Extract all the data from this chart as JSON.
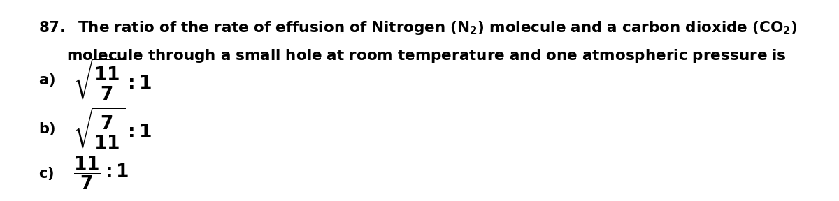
{
  "title_line1": "87.  The ratio of the rate of effusion of Nitrogen (N$_2$) molecule and a carbon dioxide (CO$_2$)",
  "title_line2": "molecule through a small hole at room temperature and one atmospheric pressure is",
  "option_a_label": "a)",
  "option_a_expr": "$\\sqrt{\\dfrac{11}{7}} : 1$",
  "option_b_label": "b)",
  "option_b_expr": "$\\sqrt{\\dfrac{7}{11}} : 1$",
  "option_c_label": "c)",
  "option_c_expr": "$\\dfrac{11}{7} : 1$",
  "bg_color": "#ffffff",
  "text_color": "#000000",
  "fontsize_title": 15.5,
  "fontsize_options": 15,
  "fontsize_math": 16
}
